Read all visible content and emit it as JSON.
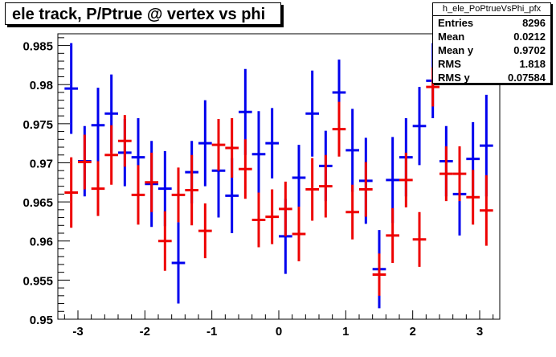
{
  "title": "ele track, P/Ptrue @ vertex vs phi",
  "stats": {
    "name": "h_ele_PoPtrueVsPhi_pfx",
    "rows": [
      {
        "label": "Entries",
        "value": "8296"
      },
      {
        "label": "Mean",
        "value": "0.0212"
      },
      {
        "label": "Mean y",
        "value": "0.9702"
      },
      {
        "label": "RMS",
        "value": "1.818"
      },
      {
        "label": "RMS y",
        "value": "0.07584"
      }
    ]
  },
  "chart_data": {
    "type": "scatter",
    "xlim": [
      -3.3,
      3.3
    ],
    "ylim": [
      0.95,
      0.9865
    ],
    "xticks": [
      -3,
      -2,
      -1,
      0,
      1,
      2,
      3
    ],
    "yticks": [
      0.95,
      0.955,
      0.96,
      0.965,
      0.97,
      0.975,
      0.98,
      0.985
    ],
    "ytick_labels": [
      "0.95",
      "0.955",
      "0.96",
      "0.965",
      "0.97",
      "0.975",
      "0.98",
      "0.985"
    ],
    "xbin_halfwidth": 0.1,
    "series": [
      {
        "color": "#0000ee",
        "points": [
          {
            "x": -3.1,
            "y": 0.9795,
            "err": 0.0058
          },
          {
            "x": -2.9,
            "y": 0.9702,
            "err": 0.0045
          },
          {
            "x": -2.7,
            "y": 0.9748,
            "err": 0.0048
          },
          {
            "x": -2.5,
            "y": 0.9763,
            "err": 0.005
          },
          {
            "x": -2.3,
            "y": 0.9713,
            "err": 0.0043
          },
          {
            "x": -2.1,
            "y": 0.9707,
            "err": 0.005
          },
          {
            "x": -1.9,
            "y": 0.9673,
            "err": 0.0055
          },
          {
            "x": -1.7,
            "y": 0.9667,
            "err": 0.0048
          },
          {
            "x": -1.5,
            "y": 0.9572,
            "err": 0.0052
          },
          {
            "x": -1.3,
            "y": 0.9688,
            "err": 0.004
          },
          {
            "x": -1.1,
            "y": 0.9725,
            "err": 0.0055
          },
          {
            "x": -0.9,
            "y": 0.969,
            "err": 0.006
          },
          {
            "x": -0.7,
            "y": 0.9658,
            "err": 0.0048
          },
          {
            "x": -0.5,
            "y": 0.9765,
            "err": 0.0055
          },
          {
            "x": -0.3,
            "y": 0.9711,
            "err": 0.0055
          },
          {
            "x": -0.1,
            "y": 0.9725,
            "err": 0.0045
          },
          {
            "x": 0.1,
            "y": 0.9606,
            "err": 0.0048
          },
          {
            "x": 0.3,
            "y": 0.9681,
            "err": 0.0042
          },
          {
            "x": 0.5,
            "y": 0.9763,
            "err": 0.0055
          },
          {
            "x": 0.7,
            "y": 0.9696,
            "err": 0.0045
          },
          {
            "x": 0.9,
            "y": 0.979,
            "err": 0.0042
          },
          {
            "x": 1.1,
            "y": 0.9716,
            "err": 0.0053
          },
          {
            "x": 1.3,
            "y": 0.9677,
            "err": 0.0055
          },
          {
            "x": 1.5,
            "y": 0.9564,
            "err": 0.005
          },
          {
            "x": 1.7,
            "y": 0.9678,
            "err": 0.0055
          },
          {
            "x": 1.9,
            "y": 0.9707,
            "err": 0.005
          },
          {
            "x": 2.1,
            "y": 0.9747,
            "err": 0.005
          },
          {
            "x": 2.3,
            "y": 0.9805,
            "err": 0.0048
          },
          {
            "x": 2.5,
            "y": 0.9702,
            "err": 0.0045
          },
          {
            "x": 2.7,
            "y": 0.966,
            "err": 0.0053
          },
          {
            "x": 2.9,
            "y": 0.9705,
            "err": 0.0047
          },
          {
            "x": 3.1,
            "y": 0.9722,
            "err": 0.0065
          }
        ]
      },
      {
        "color": "#ee0000",
        "points": [
          {
            "x": -3.1,
            "y": 0.9662,
            "err": 0.0045
          },
          {
            "x": -2.9,
            "y": 0.9701,
            "err": 0.0035
          },
          {
            "x": -2.7,
            "y": 0.9667,
            "err": 0.0035
          },
          {
            "x": -2.5,
            "y": 0.971,
            "err": 0.0038
          },
          {
            "x": -2.3,
            "y": 0.9728,
            "err": 0.0033
          },
          {
            "x": -2.1,
            "y": 0.9659,
            "err": 0.0038
          },
          {
            "x": -1.9,
            "y": 0.9675,
            "err": 0.0038
          },
          {
            "x": -1.7,
            "y": 0.96,
            "err": 0.0038
          },
          {
            "x": -1.5,
            "y": 0.9659,
            "err": 0.0035
          },
          {
            "x": -1.3,
            "y": 0.9665,
            "err": 0.0045
          },
          {
            "x": -1.1,
            "y": 0.9613,
            "err": 0.0035
          },
          {
            "x": -0.9,
            "y": 0.9723,
            "err": 0.0033
          },
          {
            "x": -0.7,
            "y": 0.9719,
            "err": 0.0038
          },
          {
            "x": -0.5,
            "y": 0.9692,
            "err": 0.0038
          },
          {
            "x": -0.3,
            "y": 0.9627,
            "err": 0.0035
          },
          {
            "x": -0.1,
            "y": 0.9631,
            "err": 0.0035
          },
          {
            "x": 0.1,
            "y": 0.9641,
            "err": 0.0035
          },
          {
            "x": 0.3,
            "y": 0.9609,
            "err": 0.0035
          },
          {
            "x": 0.5,
            "y": 0.9666,
            "err": 0.004
          },
          {
            "x": 0.7,
            "y": 0.967,
            "err": 0.004
          },
          {
            "x": 0.9,
            "y": 0.9743,
            "err": 0.0035
          },
          {
            "x": 1.1,
            "y": 0.9637,
            "err": 0.0035
          },
          {
            "x": 1.3,
            "y": 0.9666,
            "err": 0.0035
          },
          {
            "x": 1.5,
            "y": 0.9557,
            "err": 0.0027
          },
          {
            "x": 1.7,
            "y": 0.9607,
            "err": 0.0035
          },
          {
            "x": 1.9,
            "y": 0.9678,
            "err": 0.0035
          },
          {
            "x": 2.1,
            "y": 0.9602,
            "err": 0.0035
          },
          {
            "x": 2.3,
            "y": 0.9797,
            "err": 0.0025
          },
          {
            "x": 2.5,
            "y": 0.9686,
            "err": 0.0035
          },
          {
            "x": 2.7,
            "y": 0.9686,
            "err": 0.0035
          },
          {
            "x": 2.9,
            "y": 0.9656,
            "err": 0.0035
          },
          {
            "x": 3.1,
            "y": 0.9639,
            "err": 0.0045
          }
        ]
      }
    ]
  }
}
